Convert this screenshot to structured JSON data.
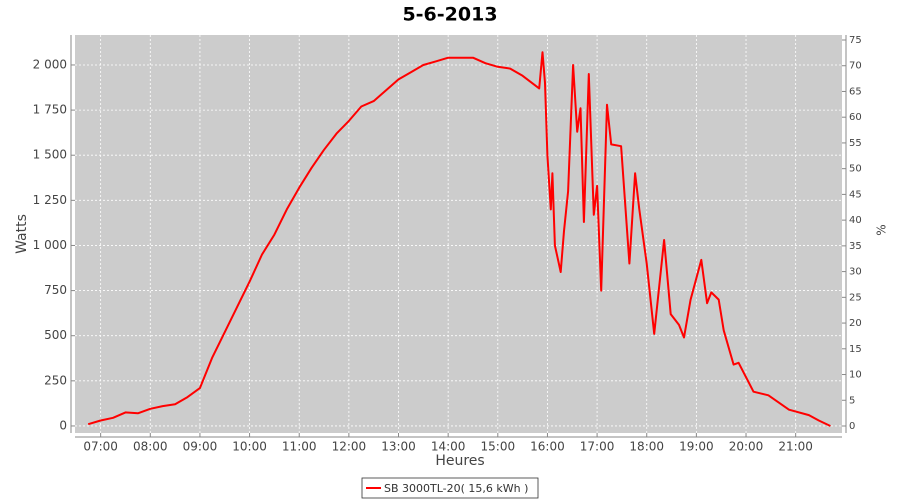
{
  "chart_data": {
    "type": "line",
    "title": "5-6-2013",
    "x_label": "Heures",
    "y_label": "Watts",
    "y2_label": "%",
    "x": [
      "06:45",
      "07:00",
      "07:15",
      "07:30",
      "07:45",
      "08:00",
      "08:15",
      "08:30",
      "08:45",
      "09:00",
      "09:15",
      "09:30",
      "09:45",
      "10:00",
      "10:15",
      "10:30",
      "10:45",
      "11:00",
      "11:15",
      "11:30",
      "11:45",
      "12:00",
      "12:15",
      "12:30",
      "12:45",
      "13:00",
      "13:15",
      "13:30",
      "13:45",
      "14:00",
      "14:15",
      "14:30",
      "14:45",
      "15:00",
      "15:15",
      "15:30",
      "15:50",
      "15:54",
      "15:57",
      "16:00",
      "16:04",
      "16:06",
      "16:09",
      "16:16",
      "16:20",
      "16:25",
      "16:31",
      "16:36",
      "16:40",
      "16:44",
      "16:50",
      "16:56",
      "17:00",
      "17:05",
      "17:12",
      "17:17",
      "17:29",
      "17:39",
      "17:46",
      "17:51",
      "18:00",
      "18:09",
      "18:21",
      "18:29",
      "18:39",
      "18:45",
      "18:53",
      "19:06",
      "19:13",
      "19:18",
      "19:27",
      "19:33",
      "19:45",
      "19:51",
      "20:09",
      "20:27",
      "20:52",
      "21:16",
      "21:28",
      "21:42"
    ],
    "series": [
      {
        "name": "SB 3000TL-20( 15,6 kWh )",
        "color": "#ff0000",
        "values": [
          10,
          30,
          45,
          75,
          70,
          95,
          110,
          120,
          160,
          210,
          380,
          520,
          660,
          800,
          950,
          1060,
          1200,
          1320,
          1430,
          1530,
          1620,
          1690,
          1770,
          1800,
          1860,
          1920,
          1960,
          2000,
          2020,
          2040,
          2040,
          2040,
          2010,
          1990,
          1980,
          1940,
          1870,
          2070,
          1900,
          1500,
          1200,
          1400,
          1000,
          853,
          1080,
          1300,
          2000,
          1630,
          1760,
          1130,
          1950,
          1170,
          1330,
          750,
          1780,
          1560,
          1550,
          900,
          1400,
          1200,
          900,
          510,
          1030,
          620,
          560,
          490,
          700,
          920,
          680,
          740,
          700,
          530,
          340,
          350,
          190,
          170,
          90,
          60,
          30,
          0
        ]
      }
    ],
    "xlim": [
      "06:29",
      "21:56"
    ],
    "xticks": [
      "07:00",
      "08:00",
      "09:00",
      "10:00",
      "11:00",
      "12:00",
      "13:00",
      "14:00",
      "15:00",
      "16:00",
      "17:00",
      "18:00",
      "19:00",
      "20:00",
      "21:00"
    ],
    "ylim": [
      -39,
      2166
    ],
    "yticks": [
      0,
      250,
      500,
      750,
      {
        "value": 1000,
        "label": "1 000"
      },
      {
        "value": 1250,
        "label": "1 250"
      },
      {
        "value": 1500,
        "label": "1 500"
      },
      {
        "value": 1750,
        "label": "1 750"
      },
      {
        "value": 2000,
        "label": "2 000"
      }
    ],
    "y2lim": [
      -1.36,
      75.97
    ],
    "y2ticks": [
      0,
      5,
      10,
      15,
      20,
      25,
      30,
      35,
      40,
      45,
      50,
      55,
      60,
      65,
      70,
      75
    ],
    "grid": true,
    "legend": "bottom"
  }
}
